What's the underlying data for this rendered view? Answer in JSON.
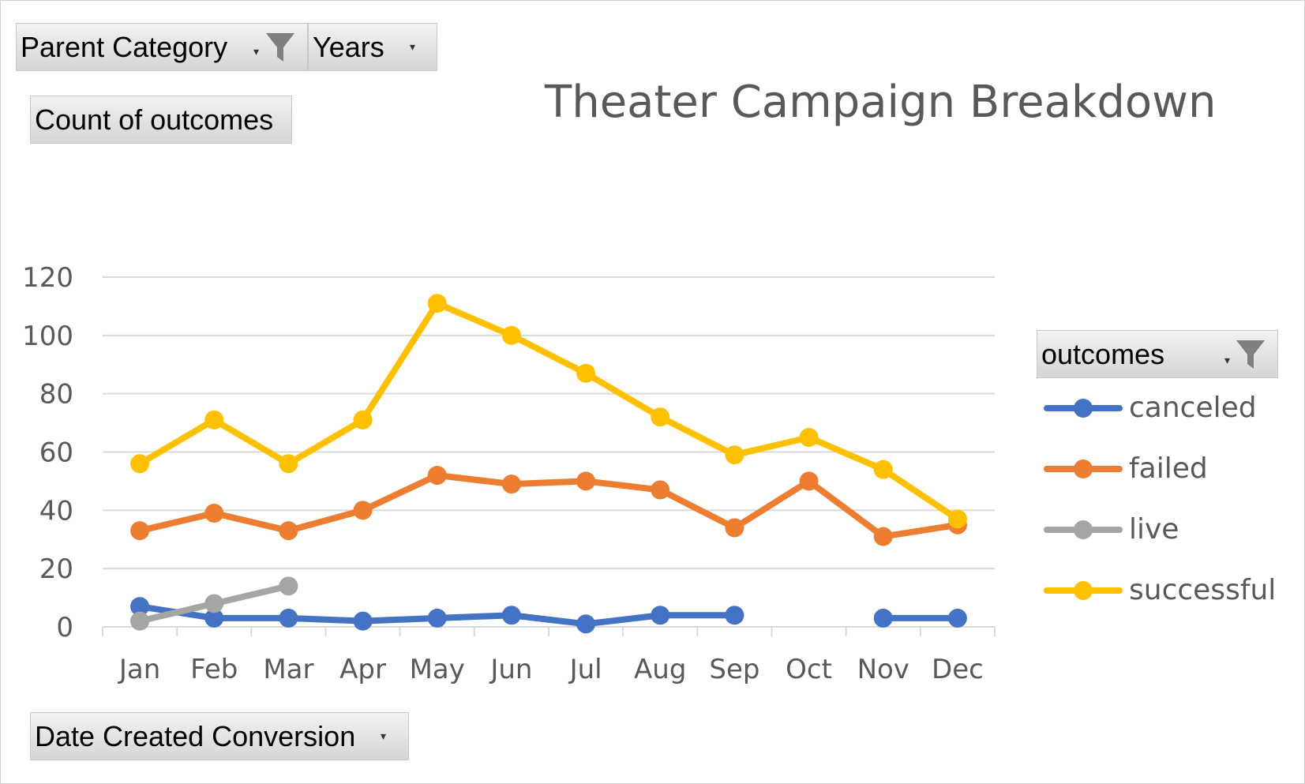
{
  "filters": {
    "parent_category": {
      "label": "Parent Category",
      "icon": "filter-funnel-icon"
    },
    "years": {
      "label": "Years"
    },
    "values_field": {
      "label": "Count of outcomes"
    },
    "axis_field": {
      "label": "Date Created Conversion"
    },
    "legend_field": {
      "label": "outcomes",
      "icon": "filter-funnel-icon"
    },
    "dropdown_glyph": "▾"
  },
  "chart_data": {
    "type": "line",
    "title": "Theater Campaign Breakdown",
    "xlabel": "",
    "ylabel": "",
    "categories": [
      "Jan",
      "Feb",
      "Mar",
      "Apr",
      "May",
      "Jun",
      "Jul",
      "Aug",
      "Sep",
      "Oct",
      "Nov",
      "Dec"
    ],
    "ylim": [
      0,
      120
    ],
    "yticks": [
      0,
      20,
      40,
      60,
      80,
      100,
      120
    ],
    "grid": true,
    "legend_position": "right",
    "series": [
      {
        "name": "canceled",
        "color": "#4472C4",
        "values": [
          7,
          3,
          3,
          2,
          3,
          4,
          1,
          4,
          4,
          null,
          3,
          3
        ]
      },
      {
        "name": "failed",
        "color": "#ED7D31",
        "values": [
          33,
          39,
          33,
          40,
          52,
          49,
          50,
          47,
          34,
          50,
          31,
          35
        ]
      },
      {
        "name": "live",
        "color": "#A5A5A5",
        "values": [
          2,
          8,
          14,
          null,
          null,
          null,
          null,
          null,
          null,
          null,
          null,
          null
        ]
      },
      {
        "name": "successful",
        "color": "#FFC000",
        "values": [
          56,
          71,
          56,
          71,
          111,
          100,
          87,
          72,
          59,
          65,
          54,
          37
        ]
      }
    ]
  }
}
